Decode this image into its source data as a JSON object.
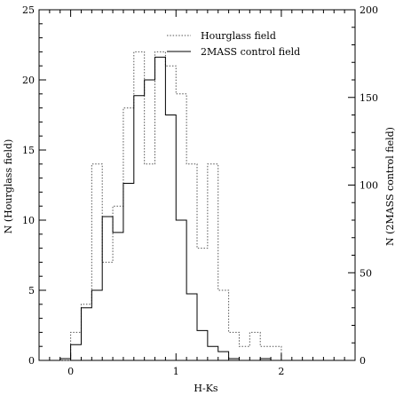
{
  "chart_data": {
    "type": "histogram",
    "bin_edges": [
      -0.1,
      0.0,
      0.1,
      0.2,
      0.3,
      0.4,
      0.5,
      0.6,
      0.7,
      0.8,
      0.9,
      1.0,
      1.1,
      1.2,
      1.3,
      1.4,
      1.5,
      1.6,
      1.7,
      1.8,
      1.9,
      2.0,
      2.1
    ],
    "xlabel": "H-Ks",
    "ylabel_left": "N (Hourglass field)",
    "ylabel_right": "N (2MASS control field)",
    "xlim": [
      -0.3,
      2.7
    ],
    "ylim_left": [
      0,
      25
    ],
    "ylim_right": [
      0,
      200
    ],
    "x_ticks": [
      0,
      1,
      2
    ],
    "x_tick_labels": [
      "0",
      "1",
      "2"
    ],
    "y_ticks_left": [
      0,
      5,
      10,
      15,
      20,
      25
    ],
    "y_tick_labels_left": [
      "0",
      "5",
      "10",
      "15",
      "20",
      "25"
    ],
    "y_ticks_right": [
      0,
      50,
      100,
      150,
      200
    ],
    "y_tick_labels_right": [
      "0",
      "50",
      "100",
      "150",
      "200"
    ],
    "legend_position": "top-right",
    "series": [
      {
        "name": "Hourglass field",
        "axis": "left",
        "style": "dotted",
        "color": "#555555",
        "values": [
          0,
          2,
          4,
          14,
          7,
          11,
          18,
          22,
          14,
          22,
          21,
          19,
          14,
          8,
          14,
          5,
          2,
          1,
          2,
          1,
          1,
          0
        ]
      },
      {
        "name": "2MASS control field",
        "axis": "right",
        "style": "solid",
        "color": "#000000",
        "values": [
          1,
          9,
          30,
          40,
          82,
          73,
          101,
          151,
          160,
          173,
          140,
          80,
          38,
          17,
          8,
          5,
          1,
          0,
          0,
          1,
          0,
          0
        ]
      }
    ]
  }
}
